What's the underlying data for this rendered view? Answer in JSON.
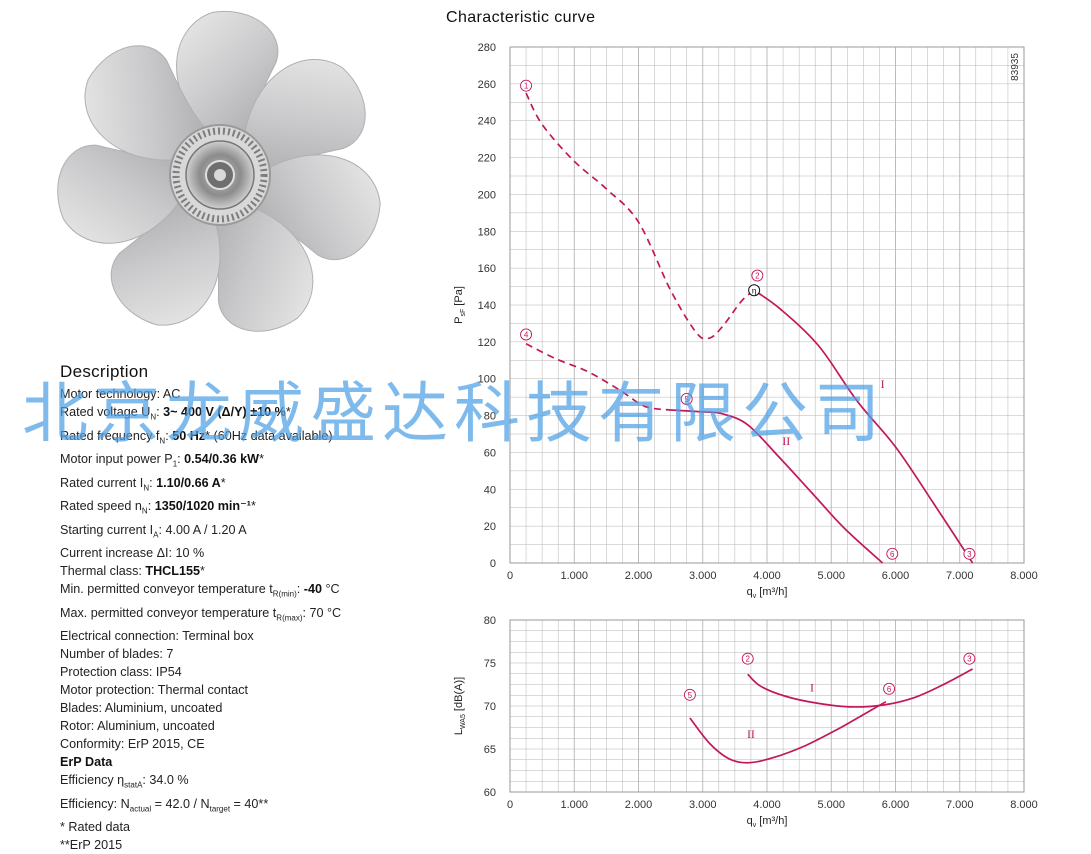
{
  "colors": {
    "curve": "#c2185b",
    "grid": "#b5b5b5",
    "watermark": "#4ea0e4"
  },
  "fan_image": {
    "icon": "axial-fan-impeller-icon"
  },
  "description": {
    "title": "Description",
    "lines": [
      {
        "parts": [
          {
            "t": "Motor technology: AC"
          }
        ]
      },
      {
        "parts": [
          {
            "t": "Rated voltage U"
          },
          {
            "t": "N",
            "sub": true
          },
          {
            "t": ": "
          },
          {
            "t": "3~ 400 V (Δ/Y) ±10 %",
            "b": true
          },
          {
            "t": "*"
          }
        ]
      },
      {
        "parts": [
          {
            "t": "Rated frequency f"
          },
          {
            "t": "N",
            "sub": true
          },
          {
            "t": ": "
          },
          {
            "t": "50 Hz",
            "b": true
          },
          {
            "t": "* (60Hz data available)"
          }
        ]
      },
      {
        "parts": [
          {
            "t": "Motor input power P"
          },
          {
            "t": "1",
            "sub": true
          },
          {
            "t": ": "
          },
          {
            "t": "0.54/0.36 kW",
            "b": true
          },
          {
            "t": "*"
          }
        ]
      },
      {
        "parts": [
          {
            "t": "Rated current I"
          },
          {
            "t": "N",
            "sub": true
          },
          {
            "t": ": "
          },
          {
            "t": "1.10/0.66 A",
            "b": true
          },
          {
            "t": "*"
          }
        ]
      },
      {
        "parts": [
          {
            "t": "Rated speed n"
          },
          {
            "t": "N",
            "sub": true
          },
          {
            "t": ": "
          },
          {
            "t": "1350/1020 min⁻¹",
            "b": true
          },
          {
            "t": "*"
          }
        ]
      },
      {
        "parts": [
          {
            "t": "Starting current I"
          },
          {
            "t": "A",
            "sub": true
          },
          {
            "t": ": 4.00 A / 1.20 A"
          }
        ]
      },
      {
        "parts": [
          {
            "t": "Current increase ΔI: 10 %"
          }
        ]
      },
      {
        "parts": [
          {
            "t": "Thermal class: "
          },
          {
            "t": "THCL155",
            "b": true
          },
          {
            "t": "*"
          }
        ]
      },
      {
        "parts": [
          {
            "t": "Min. permitted conveyor temperature t"
          },
          {
            "t": "R(min)",
            "sub": true
          },
          {
            "t": ": "
          },
          {
            "t": "-40",
            "b": true
          },
          {
            "t": " °C"
          }
        ]
      },
      {
        "parts": [
          {
            "t": "Max. permitted conveyor temperature t"
          },
          {
            "t": "R(max)",
            "sub": true
          },
          {
            "t": ": 70 °C"
          }
        ]
      },
      {
        "parts": [
          {
            "t": "Electrical connection: Terminal box"
          }
        ]
      },
      {
        "parts": [
          {
            "t": "Number of blades: 7"
          }
        ]
      },
      {
        "parts": [
          {
            "t": "Protection class: IP54"
          }
        ]
      },
      {
        "parts": [
          {
            "t": "Motor protection: Thermal contact"
          }
        ]
      },
      {
        "parts": [
          {
            "t": "Blades: Aluminium, uncoated"
          }
        ]
      },
      {
        "parts": [
          {
            "t": "Rotor: Aluminium, uncoated"
          }
        ]
      },
      {
        "parts": [
          {
            "t": "Conformity: ErP 2015, CE"
          }
        ]
      },
      {
        "head": true,
        "parts": [
          {
            "t": "ErP Data"
          }
        ]
      },
      {
        "parts": [
          {
            "t": "Efficiency η"
          },
          {
            "t": "statA",
            "sub": true
          },
          {
            "t": ": 34.0 %"
          }
        ]
      },
      {
        "parts": [
          {
            "t": "Efficiency: N"
          },
          {
            "t": "actual",
            "sub": true
          },
          {
            "t": " = 42.0 / N"
          },
          {
            "t": "target",
            "sub": true
          },
          {
            "t": " = 40**"
          }
        ]
      },
      {
        "parts": [
          {
            "t": "* Rated data"
          }
        ]
      },
      {
        "parts": [
          {
            "t": "**ErP 2015"
          }
        ]
      }
    ]
  },
  "chart_section_title": "Characteristic curve",
  "watermark": "北京龙威盛达科技有限公司",
  "chart_data": [
    {
      "type": "line",
      "chart_id": "pressure",
      "title": "Characteristic curve",
      "xlabel_main": "q",
      "xlabel_sub": "v",
      "xlabel_tail": " [m³/h]",
      "ylabel_main": "P",
      "ylabel_sub": "sF",
      "ylabel_tail": " [Pa]",
      "xlim": [
        0,
        8000
      ],
      "ylim": [
        0,
        280
      ],
      "xticks": [
        0,
        1000,
        2000,
        3000,
        4000,
        5000,
        6000,
        7000,
        8000
      ],
      "xtick_labels": [
        "0",
        "1.000",
        "2.000",
        "3.000",
        "4.000",
        "5.000",
        "6.000",
        "7.000",
        "8.000"
      ],
      "yticks": [
        0,
        20,
        40,
        60,
        80,
        100,
        120,
        140,
        160,
        180,
        200,
        220,
        240,
        260,
        280
      ],
      "ytick_labels": [
        "0",
        "20",
        "40",
        "60",
        "80",
        "100",
        "120",
        "140",
        "160",
        "180",
        "200",
        "220",
        "240",
        "260",
        "280"
      ],
      "grid": true,
      "side_note": "83935",
      "series": [
        {
          "name": "I",
          "style": "dashed",
          "x": [
            250,
            500,
            1000,
            1500,
            2000,
            2500,
            2900,
            3100,
            3300,
            3600,
            3800
          ],
          "y": [
            255,
            238,
            218,
            203,
            185,
            148,
            125,
            122,
            128,
            142,
            148
          ]
        },
        {
          "name": "I",
          "style": "solid",
          "x": [
            3800,
            4200,
            4800,
            5400,
            6000,
            6600,
            7200
          ],
          "y": [
            148,
            138,
            118,
            88,
            63,
            32,
            0
          ]
        },
        {
          "name": "II",
          "style": "dashed",
          "x": [
            250,
            700,
            1200,
            1700,
            2100,
            2500
          ],
          "y": [
            119,
            111,
            104,
            94,
            85,
            83
          ]
        },
        {
          "name": "II",
          "style": "solid",
          "x": [
            2500,
            3000,
            3300,
            3700,
            4200,
            4700,
            5200,
            5800
          ],
          "y": [
            83,
            82,
            81,
            75,
            57,
            38,
            19,
            0
          ]
        }
      ],
      "curve_labels": [
        {
          "text": "I",
          "x": 5800,
          "y": 95
        },
        {
          "text": "II",
          "x": 4300,
          "y": 64
        }
      ],
      "point_markers": [
        {
          "text": "1",
          "x": 250,
          "y": 259
        },
        {
          "text": "2",
          "x": 3850,
          "y": 156
        },
        {
          "text": "3",
          "x": 7150,
          "y": 5
        },
        {
          "text": "4",
          "x": 250,
          "y": 124
        },
        {
          "text": "5",
          "x": 2750,
          "y": 89
        },
        {
          "text": "6",
          "x": 5950,
          "y": 5
        }
      ],
      "eta_marker": {
        "text": "η",
        "x": 3800,
        "y": 148
      }
    },
    {
      "type": "line",
      "chart_id": "sound",
      "xlabel_main": "q",
      "xlabel_sub": "v",
      "xlabel_tail": " [m³/h]",
      "ylabel_main": "L",
      "ylabel_sub": "WA5",
      "ylabel_tail": " [dB(A)]",
      "xlim": [
        0,
        8000
      ],
      "ylim": [
        60,
        80
      ],
      "xticks": [
        0,
        1000,
        2000,
        3000,
        4000,
        5000,
        6000,
        7000,
        8000
      ],
      "xtick_labels": [
        "0",
        "1.000",
        "2.000",
        "3.000",
        "4.000",
        "5.000",
        "6.000",
        "7.000",
        "8.000"
      ],
      "yticks": [
        60,
        65,
        70,
        75,
        80
      ],
      "ytick_labels": [
        "60",
        "65",
        "70",
        "75",
        "80"
      ],
      "grid": true,
      "series": [
        {
          "name": "I",
          "style": "solid",
          "x": [
            3700,
            3900,
            4300,
            4800,
            5300,
            5800,
            6300,
            6800,
            7200
          ],
          "y": [
            73.7,
            72.3,
            71.1,
            70.3,
            69.9,
            70.1,
            71.0,
            72.7,
            74.3
          ]
        },
        {
          "name": "II",
          "style": "solid",
          "x": [
            2800,
            3100,
            3400,
            3700,
            4100,
            4600,
            5100,
            5500,
            5850
          ],
          "y": [
            68.6,
            65.7,
            63.9,
            63.4,
            64.0,
            65.4,
            67.3,
            69.0,
            70.5
          ]
        }
      ],
      "curve_labels": [
        {
          "text": "I",
          "x": 4700,
          "y": 71.7
        },
        {
          "text": "II",
          "x": 3750,
          "y": 66.3
        }
      ],
      "point_markers": [
        {
          "text": "2",
          "x": 3700,
          "y": 75.5
        },
        {
          "text": "3",
          "x": 7150,
          "y": 75.5
        },
        {
          "text": "5",
          "x": 2800,
          "y": 71.3
        },
        {
          "text": "6",
          "x": 5900,
          "y": 72.0
        }
      ]
    }
  ]
}
